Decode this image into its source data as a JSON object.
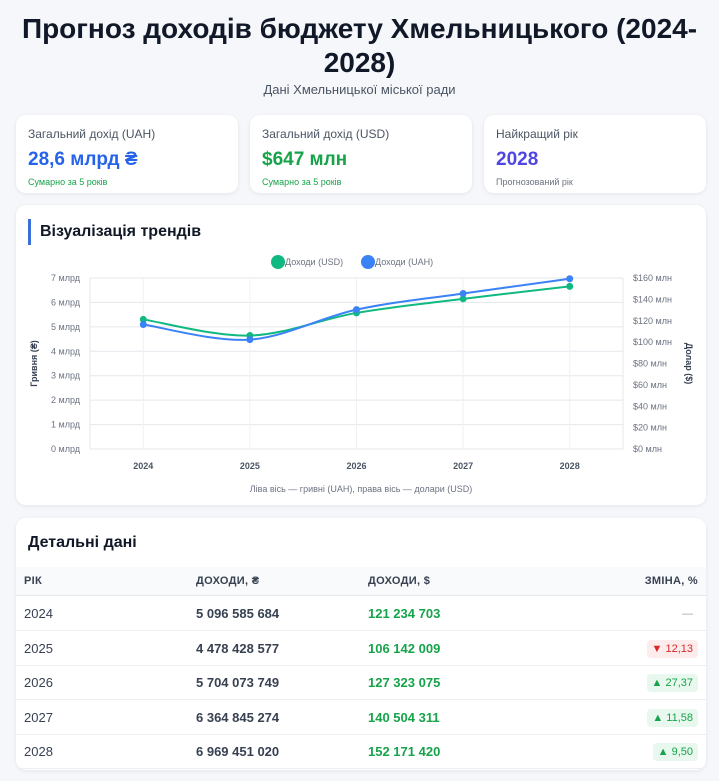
{
  "header": {
    "title": "Прогноз доходів бюджету Хмельницького (2024-2028)",
    "subtitle": "Дані Хмельницької міської ради"
  },
  "stats": [
    {
      "label": "Загальний дохід (UAH)",
      "value": "28,6 млрд ₴",
      "note": "Сумарно за 5 років",
      "color": "#2563eb",
      "note_color": "#16a34a"
    },
    {
      "label": "Загальний дохід (USD)",
      "value": "$647 млн",
      "note": "Сумарно за 5 років",
      "color": "#16a34a",
      "note_color": "#16a34a"
    },
    {
      "label": "Найкращий рік",
      "value": "2028",
      "note": "Прогнозований рік",
      "color": "#4f46e5",
      "note_color": "#6b7280"
    }
  ],
  "chart_section": {
    "heading": "Візуалізація трендів",
    "caption": "Ліва вісь — гривні (UAH), права вісь — долари (USD)"
  },
  "chart_data": {
    "type": "line",
    "categories": [
      "2024",
      "2025",
      "2026",
      "2027",
      "2028"
    ],
    "series": [
      {
        "name": "Доходи (USD)",
        "axis": "right",
        "color": "#10b981",
        "values": [
          121234703,
          106142009,
          127323075,
          140504311,
          152171420
        ]
      },
      {
        "name": "Доходи (UAH)",
        "axis": "left",
        "color": "#3b82f6",
        "values": [
          5096585684,
          4478428577,
          5704073749,
          6364845274,
          6969451020
        ]
      }
    ],
    "left_axis": {
      "label": "Гривня (₴)",
      "range": [
        0,
        7000000000
      ],
      "ticks": [
        "0 млрд",
        "1 млрд",
        "2 млрд",
        "3 млрд",
        "4 млрд",
        "5 млрд",
        "6 млрд",
        "7 млрд"
      ]
    },
    "right_axis": {
      "label": "Долар ($)",
      "range": [
        0,
        160000000
      ],
      "ticks": [
        "$0 млн",
        "$20 млн",
        "$40 млн",
        "$60 млн",
        "$80 млн",
        "$100 млн",
        "$120 млн",
        "$140 млн",
        "$160 млн"
      ]
    },
    "legend_position": "top",
    "grid": true
  },
  "table": {
    "heading": "Детальні дані",
    "columns": [
      "РІК",
      "ДОХОДИ, ₴",
      "ДОХОДИ, $",
      "ЗМІНА, %"
    ],
    "rows": [
      {
        "year": "2024",
        "uah": "5 096 585 684",
        "usd": "121 234 703",
        "change": "—",
        "dir": "none"
      },
      {
        "year": "2025",
        "uah": "4 478 428 577",
        "usd": "106 142 009",
        "change": "▼ 12,13",
        "dir": "down"
      },
      {
        "year": "2026",
        "uah": "5 704 073 749",
        "usd": "127 323 075",
        "change": "▲ 27,37",
        "dir": "up"
      },
      {
        "year": "2027",
        "uah": "6 364 845 274",
        "usd": "140 504 311",
        "change": "▲ 11,58",
        "dir": "up"
      },
      {
        "year": "2028",
        "uah": "6 969 451 020",
        "usd": "152 171 420",
        "change": "▲ 9,50",
        "dir": "up"
      }
    ]
  }
}
